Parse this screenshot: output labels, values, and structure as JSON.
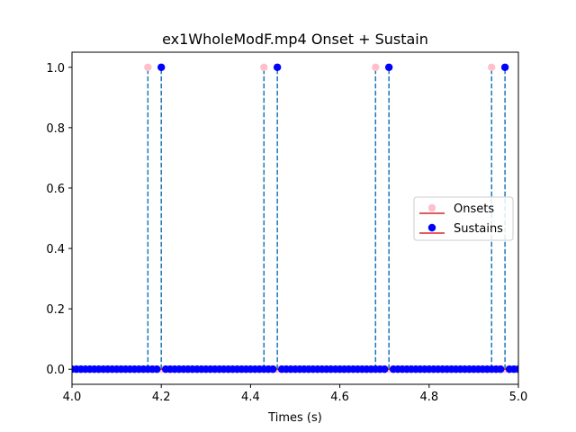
{
  "chart_data": {
    "type": "scatter",
    "title": "ex1WholeModF.mp4 Onset + Sustain",
    "xlabel": "Times (s)",
    "ylabel": "",
    "xlim": [
      4.0,
      5.0
    ],
    "ylim": [
      -0.05,
      1.05
    ],
    "xticks": [
      "4.0",
      "4.2",
      "4.4",
      "4.6",
      "4.8",
      "5.0"
    ],
    "yticks": [
      "0.0",
      "0.2",
      "0.4",
      "0.6",
      "0.8",
      "1.0"
    ],
    "grid": false,
    "legend_position": "center-right",
    "series": [
      {
        "name": "Onsets",
        "marker_color": "#ffc0cb",
        "stem_color": "#1f77b4",
        "baseline_color": "#d62728",
        "peaks": [
          4.17,
          4.43,
          4.68,
          4.94
        ]
      },
      {
        "name": "Sustains",
        "marker_color": "#0000ff",
        "stem_color": "#1f77b4",
        "baseline_color": "#d62728",
        "peaks": [
          4.2,
          4.46,
          4.71,
          4.97
        ]
      }
    ],
    "baseline_sample_step": 0.01,
    "baseline_value": 0.0
  }
}
